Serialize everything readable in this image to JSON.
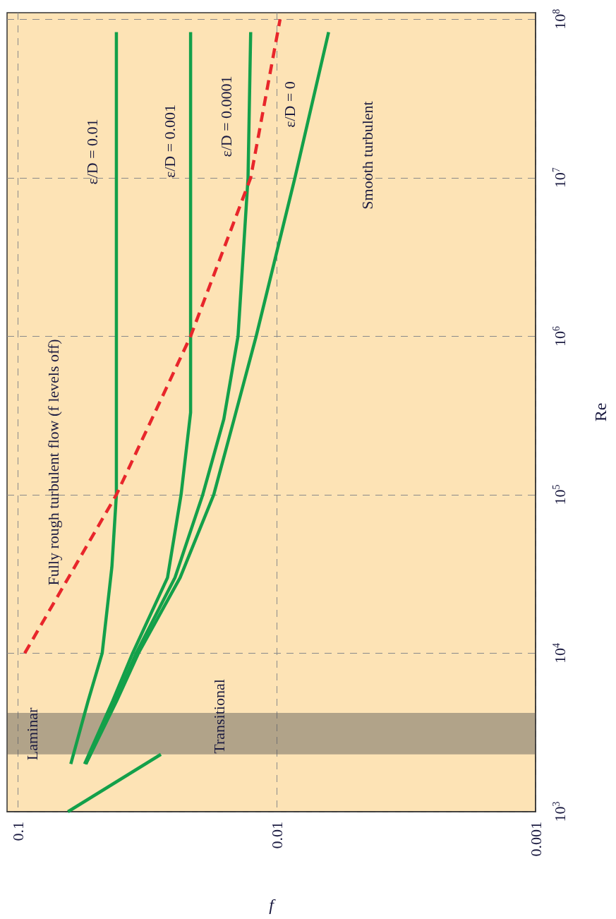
{
  "chart_data": {
    "type": "line",
    "xlabel": "f",
    "ylabel": "Re",
    "log": "xy",
    "grid": true,
    "marker": "none",
    "xlim": [
      0.11,
      0.001
    ],
    "ylim": [
      1000,
      110000000
    ],
    "xticks": [
      0.1,
      0.01,
      0.001
    ],
    "yticks": [
      {
        "value": 1000,
        "label": "10$^{3}$"
      },
      {
        "value": 10000,
        "label": "10$^{4}$"
      },
      {
        "value": 100000,
        "label": "10$^{5}$"
      },
      {
        "value": 1000000,
        "label": "10$^{6}$"
      },
      {
        "value": 10000000,
        "label": "10$^{7}$"
      },
      {
        "value": 100000000,
        "label": "10$^{8}$"
      }
    ],
    "series": [
      {
        "color": "#13a04a",
        "x": [
          0.064,
          0.028
        ],
        "values": [
          1000,
          2300
        ]
      },
      {
        "color": "#13a04a",
        "x": [
          0.0624,
          0.0535,
          0.0472,
          0.0433,
          0.0416,
          0.0416,
          0.0416,
          0.0416
        ],
        "values": [
          2000,
          5000,
          10000,
          35000,
          100000,
          1000000,
          10000000,
          83000000
        ]
      },
      {
        "color": "#13a04a",
        "x": [
          0.0552,
          0.043,
          0.036,
          0.0264,
          0.0234,
          0.0215,
          0.0215,
          0.0215,
          0.0215
        ],
        "values": [
          2000,
          5000,
          10000,
          30000,
          100000,
          330000,
          1000000,
          10000000,
          83000000
        ]
      },
      {
        "color": "#13a04a",
        "x": [
          0.0546,
          0.042,
          0.0349,
          0.0247,
          0.0193,
          0.016,
          0.0141,
          0.0129,
          0.0126
        ],
        "values": [
          2000,
          5000,
          10000,
          30000,
          100000,
          300000,
          1000000,
          10000000,
          83000000
        ]
      },
      {
        "color": "#13a04a",
        "x": [
          0.0546,
          0.0415,
          0.0342,
          0.0236,
          0.0175,
          0.0146,
          0.012,
          0.0085,
          0.0063
        ],
        "values": [
          2000,
          5000,
          10000,
          30000,
          100000,
          300000,
          1000000,
          10000000,
          83000000
        ]
      },
      {
        "color": "#e8262b",
        "line_style": "dashed",
        "x": [
          0.094,
          0.0416,
          0.0215,
          0.0126,
          0.0097
        ],
        "values": [
          10000,
          100000,
          1000000,
          10000000,
          100000000
        ]
      }
    ],
    "bands": [
      {
        "axis": "y",
        "from": 2300,
        "to": 4200,
        "color": "#555555"
      }
    ],
    "annotations": [
      "Fully rough turbulent flow (f levels off)",
      "ε/D = 0.01",
      "ε/D = 0.001",
      "ε/D = 0.0001",
      "ε/D = 0",
      "Smooth turbulent",
      "Laminar",
      "Transitional"
    ]
  }
}
